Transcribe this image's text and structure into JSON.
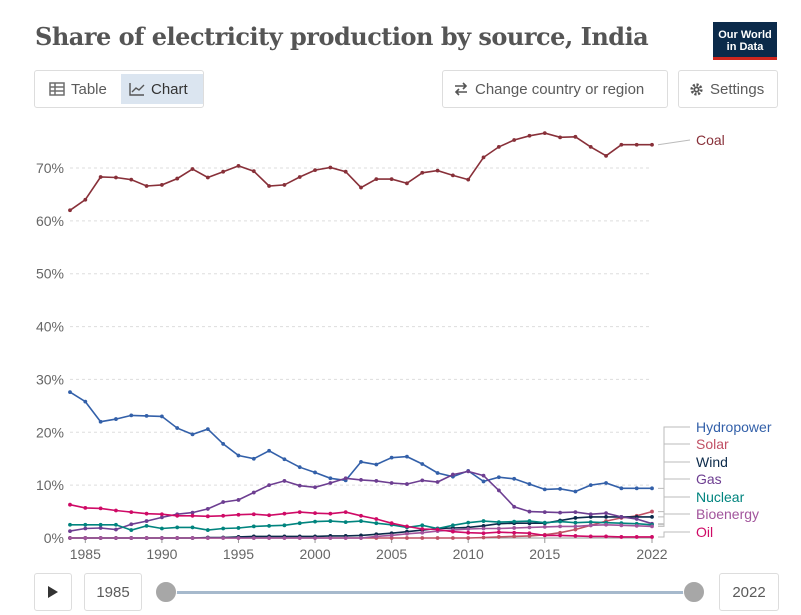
{
  "header": {
    "title": "Share of electricity production by source, India",
    "logo_line1": "Our World",
    "logo_line2": "in Data"
  },
  "tabs": [
    {
      "label": "Table",
      "icon": "table-icon",
      "active": false
    },
    {
      "label": "Chart",
      "icon": "line-chart-icon",
      "active": true
    }
  ],
  "controls": {
    "country_label": "Change country or region",
    "settings_label": "Settings"
  },
  "timeline": {
    "start_year": "1985",
    "end_year": "2022",
    "play_icon": "play-icon"
  },
  "chart_data": {
    "type": "line",
    "title": "Share of electricity production by source, India",
    "ylim": [
      0,
      77
    ],
    "xlim": [
      1984,
      2022
    ],
    "y_ticks": [
      0,
      10,
      20,
      30,
      40,
      50,
      60,
      70
    ],
    "y_tick_labels": [
      "0%",
      "10%",
      "20%",
      "30%",
      "40%",
      "50%",
      "60%",
      "70%"
    ],
    "x_ticks": [
      1985,
      1990,
      1995,
      2000,
      2005,
      2010,
      2015,
      2022
    ],
    "grid": true,
    "legend": "right, end of lines",
    "x": [
      1984,
      1985,
      1986,
      1987,
      1988,
      1989,
      1990,
      1991,
      1992,
      1993,
      1994,
      1995,
      1996,
      1997,
      1998,
      1999,
      2000,
      2001,
      2002,
      2003,
      2004,
      2005,
      2006,
      2007,
      2008,
      2009,
      2010,
      2011,
      2012,
      2013,
      2014,
      2015,
      2016,
      2017,
      2018,
      2019,
      2020,
      2021,
      2022
    ],
    "series": [
      {
        "name": "Coal",
        "color": "#883039",
        "values": [
          62,
          64,
          68.3,
          68.2,
          67.8,
          66.6,
          66.8,
          68,
          69.8,
          68.2,
          69.3,
          70.4,
          69.4,
          66.6,
          66.8,
          68.3,
          69.6,
          70.1,
          69.3,
          66.3,
          67.9,
          67.9,
          67.1,
          69.1,
          69.5,
          68.6,
          67.8,
          72,
          74,
          75.3,
          76.1,
          76.6,
          75.8,
          75.9,
          74,
          72.3,
          74.4,
          74.4,
          74.4
        ]
      },
      {
        "name": "Hydropower",
        "color": "#3360a9",
        "values": [
          27.6,
          25.8,
          22.0,
          22.5,
          23.2,
          23.1,
          23.0,
          20.8,
          19.6,
          20.6,
          17.8,
          15.6,
          15.0,
          16.5,
          14.9,
          13.4,
          12.4,
          11.3,
          10.9,
          14.4,
          13.9,
          15.2,
          15.4,
          14.0,
          12.3,
          11.6,
          12.7,
          10.7,
          11.5,
          11.2,
          10.2,
          9.2,
          9.3,
          8.8,
          10.0,
          10.4,
          9.4,
          9.4,
          9.4
        ]
      },
      {
        "name": "Solar",
        "color": "#c15065",
        "values": [
          0,
          0,
          0,
          0,
          0,
          0,
          0,
          0,
          0,
          0,
          0,
          0,
          0,
          0,
          0,
          0,
          0,
          0,
          0,
          0,
          0,
          0,
          0,
          0,
          0,
          0,
          0,
          0.1,
          0.2,
          0.3,
          0.4,
          0.6,
          1.0,
          1.6,
          2.4,
          3.2,
          3.8,
          4.2,
          5.0
        ]
      },
      {
        "name": "Wind",
        "color": "#0b2a4a",
        "values": [
          0,
          0,
          0,
          0,
          0,
          0,
          0,
          0,
          0,
          0.1,
          0.1,
          0.2,
          0.3,
          0.3,
          0.3,
          0.3,
          0.3,
          0.4,
          0.4,
          0.5,
          0.7,
          0.9,
          1.2,
          1.5,
          1.8,
          1.9,
          2.0,
          2.3,
          2.7,
          2.8,
          2.8,
          2.8,
          3.3,
          3.8,
          4.0,
          4.0,
          4.0,
          4.0,
          4.0
        ]
      },
      {
        "name": "Gas",
        "color": "#6d3e91",
        "values": [
          1.3,
          1.8,
          1.9,
          1.6,
          2.6,
          3.2,
          3.9,
          4.5,
          4.8,
          5.5,
          6.8,
          7.2,
          8.6,
          10.0,
          10.8,
          9.9,
          9.6,
          10.4,
          11.3,
          11.0,
          10.8,
          10.4,
          10.2,
          10.9,
          10.6,
          12.0,
          12.6,
          11.8,
          9.0,
          5.9,
          5.0,
          4.9,
          4.8,
          4.9,
          4.5,
          4.7,
          4.0,
          3.6,
          2.7
        ]
      },
      {
        "name": "Nuclear",
        "color": "#00847e",
        "values": [
          2.5,
          2.5,
          2.5,
          2.5,
          1.5,
          2.3,
          1.8,
          2.0,
          2.0,
          1.5,
          1.8,
          1.9,
          2.2,
          2.3,
          2.4,
          2.8,
          3.1,
          3.2,
          3.0,
          3.2,
          2.8,
          2.5,
          2.0,
          2.4,
          1.8,
          2.4,
          2.9,
          3.2,
          3.0,
          3.1,
          3.2,
          2.9,
          3.1,
          2.9,
          3.0,
          2.9,
          2.8,
          2.7,
          2.5
        ]
      },
      {
        "name": "Bioenergy",
        "color": "#a2559c",
        "values": [
          0,
          0,
          0,
          0,
          0,
          0,
          0,
          0,
          0,
          0,
          0,
          0,
          0,
          0,
          0,
          0,
          0,
          0,
          0,
          0,
          0.3,
          0.5,
          0.8,
          1.0,
          1.3,
          1.5,
          1.7,
          1.8,
          1.8,
          1.9,
          2.0,
          2.1,
          2.2,
          2.2,
          2.4,
          2.5,
          2.4,
          2.3,
          2.2
        ]
      },
      {
        "name": "Oil",
        "color": "#cf0a66",
        "values": [
          6.3,
          5.7,
          5.6,
          5.2,
          4.9,
          4.6,
          4.5,
          4.2,
          4.2,
          4.1,
          4.2,
          4.4,
          4.5,
          4.3,
          4.6,
          4.9,
          4.7,
          4.6,
          4.9,
          4.2,
          3.6,
          2.8,
          2.2,
          1.7,
          1.6,
          1.2,
          1.0,
          0.9,
          1.1,
          1.0,
          0.9,
          0.5,
          0.5,
          0.4,
          0.3,
          0.3,
          0.2,
          0.2,
          0.2
        ]
      }
    ]
  }
}
